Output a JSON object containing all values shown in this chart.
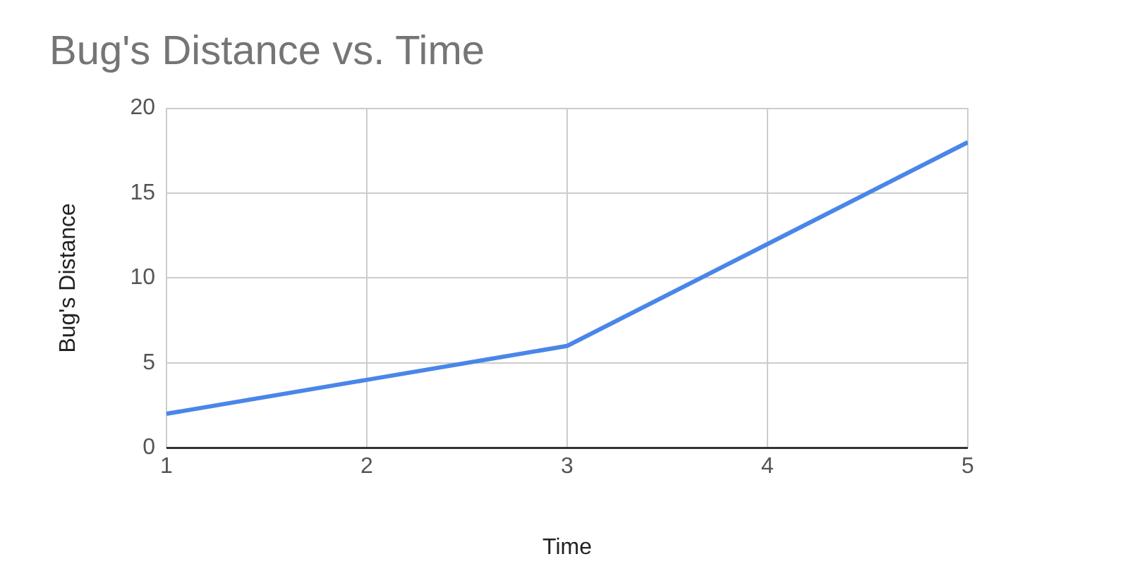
{
  "chart_data": {
    "type": "line",
    "title": "Bug's Distance vs. Time",
    "xlabel": "Time",
    "ylabel": "Bug's Distance",
    "x": [
      1,
      2,
      3,
      4,
      5
    ],
    "series": [
      {
        "color": "#4a86e8",
        "values": [
          2,
          4,
          6,
          12,
          18
        ]
      }
    ],
    "xlim": [
      1,
      5
    ],
    "xticks": [
      1,
      2,
      3,
      4,
      5
    ],
    "ylim": [
      0,
      20
    ],
    "yticks": [
      0,
      5,
      10,
      15,
      20
    ],
    "grid": true,
    "legend": false,
    "marker": "none",
    "line_style": "solid"
  }
}
